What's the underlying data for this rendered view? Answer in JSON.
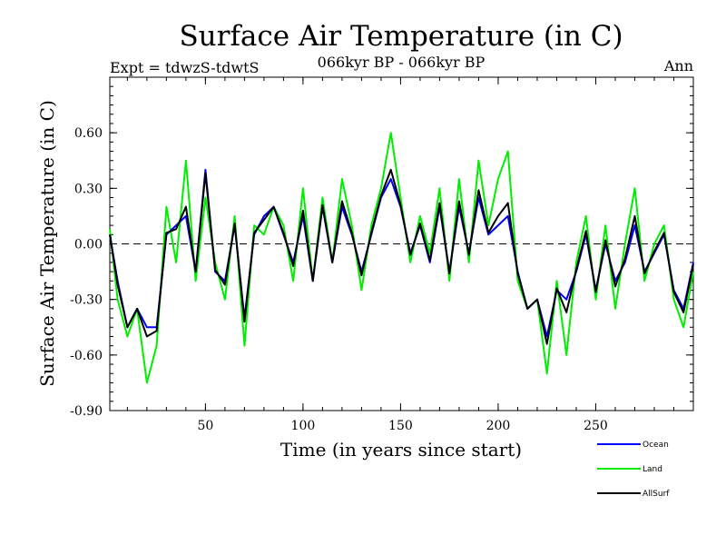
{
  "chart_data": {
    "type": "line",
    "title": "Surface Air Temperature (in C)",
    "subtitle": "066kyr BP - 066kyr BP",
    "left_label": "Expt = tdwzS-tdwtS",
    "right_label": "Ann",
    "xlabel": "Time (in years since start)",
    "ylabel": "Surface Air Temperature (in C)",
    "xlim": [
      1,
      300
    ],
    "ylim": [
      -0.9,
      0.9
    ],
    "xticks": [
      50,
      100,
      150,
      200,
      250
    ],
    "xtick_labels": [
      "50",
      "100",
      "150",
      "200",
      "250"
    ],
    "yticks": [
      -0.9,
      -0.6,
      -0.3,
      0.0,
      0.3,
      0.6
    ],
    "ytick_labels": [
      "-0.90",
      "-0.60",
      "-0.30",
      "0.00",
      "0.30",
      "0.60"
    ],
    "reference_line": 0.0,
    "legend_position": "bottom-right",
    "series": [
      {
        "name": "Land",
        "color": "#00ee00",
        "x": [
          1,
          5,
          10,
          15,
          20,
          25,
          30,
          35,
          40,
          45,
          50,
          55,
          60,
          65,
          70,
          75,
          80,
          85,
          90,
          95,
          100,
          105,
          110,
          115,
          120,
          125,
          130,
          135,
          140,
          145,
          150,
          155,
          160,
          165,
          170,
          175,
          180,
          185,
          190,
          195,
          200,
          205,
          210,
          215,
          220,
          225,
          230,
          235,
          240,
          245,
          250,
          255,
          260,
          265,
          270,
          275,
          280,
          285,
          290,
          295,
          300
        ],
        "y": [
          0.08,
          -0.3,
          -0.5,
          -0.35,
          -0.75,
          -0.55,
          0.2,
          -0.1,
          0.45,
          -0.2,
          0.25,
          -0.1,
          -0.3,
          0.15,
          -0.55,
          0.1,
          0.05,
          0.2,
          0.1,
          -0.2,
          0.3,
          -0.2,
          0.25,
          -0.1,
          0.35,
          0.1,
          -0.25,
          0.1,
          0.3,
          0.6,
          0.25,
          -0.1,
          0.15,
          -0.05,
          0.3,
          -0.2,
          0.35,
          -0.1,
          0.45,
          0.1,
          0.35,
          0.5,
          -0.2,
          -0.35,
          -0.3,
          -0.7,
          -0.2,
          -0.6,
          -0.1,
          0.15,
          -0.3,
          0.1,
          -0.35,
          0.0,
          0.3,
          -0.2,
          0.0,
          0.1,
          -0.3,
          -0.45,
          -0.15
        ]
      },
      {
        "name": "Ocean",
        "color": "#0000ff",
        "x": [
          1,
          5,
          10,
          15,
          20,
          25,
          30,
          35,
          40,
          45,
          50,
          55,
          60,
          65,
          70,
          75,
          80,
          85,
          90,
          95,
          100,
          105,
          110,
          115,
          120,
          125,
          130,
          135,
          140,
          145,
          150,
          155,
          160,
          165,
          170,
          175,
          180,
          185,
          190,
          195,
          200,
          205,
          210,
          215,
          220,
          225,
          230,
          235,
          240,
          245,
          250,
          255,
          260,
          265,
          270,
          275,
          280,
          285,
          290,
          295,
          300
        ],
        "y": [
          0.05,
          -0.2,
          -0.45,
          -0.35,
          -0.45,
          -0.45,
          0.05,
          0.1,
          0.15,
          -0.15,
          0.4,
          -0.15,
          -0.2,
          0.1,
          -0.4,
          0.05,
          0.15,
          0.2,
          0.05,
          -0.1,
          0.15,
          -0.2,
          0.2,
          -0.1,
          0.2,
          0.05,
          -0.15,
          0.05,
          0.25,
          0.35,
          0.2,
          -0.05,
          0.1,
          -0.1,
          0.2,
          -0.15,
          0.2,
          -0.05,
          0.25,
          0.05,
          0.1,
          0.15,
          -0.15,
          -0.35,
          -0.3,
          -0.5,
          -0.25,
          -0.3,
          -0.15,
          0.05,
          -0.25,
          0.0,
          -0.2,
          -0.1,
          0.1,
          -0.15,
          -0.05,
          0.05,
          -0.25,
          -0.35,
          -0.1
        ]
      },
      {
        "name": "AllSurf",
        "color": "#000000",
        "x": [
          1,
          5,
          10,
          15,
          20,
          25,
          30,
          35,
          40,
          45,
          50,
          55,
          60,
          65,
          70,
          75,
          80,
          85,
          90,
          95,
          100,
          105,
          110,
          115,
          120,
          125,
          130,
          135,
          140,
          145,
          150,
          155,
          160,
          165,
          170,
          175,
          180,
          185,
          190,
          195,
          200,
          205,
          210,
          215,
          220,
          225,
          230,
          235,
          240,
          245,
          250,
          255,
          260,
          265,
          270,
          275,
          280,
          285,
          290,
          295,
          300
        ],
        "y": [
          0.05,
          -0.22,
          -0.45,
          -0.35,
          -0.5,
          -0.47,
          0.06,
          0.08,
          0.2,
          -0.15,
          0.38,
          -0.14,
          -0.22,
          0.11,
          -0.42,
          0.06,
          0.13,
          0.2,
          0.06,
          -0.12,
          0.18,
          -0.2,
          0.21,
          -0.1,
          0.23,
          0.06,
          -0.17,
          0.06,
          0.26,
          0.4,
          0.21,
          -0.06,
          0.11,
          -0.09,
          0.22,
          -0.16,
          0.23,
          -0.06,
          0.29,
          0.06,
          0.15,
          0.22,
          -0.16,
          -0.35,
          -0.3,
          -0.54,
          -0.24,
          -0.37,
          -0.14,
          0.07,
          -0.26,
          0.02,
          -0.23,
          -0.08,
          0.15,
          -0.16,
          -0.04,
          0.06,
          -0.26,
          -0.37,
          -0.11
        ]
      }
    ]
  }
}
